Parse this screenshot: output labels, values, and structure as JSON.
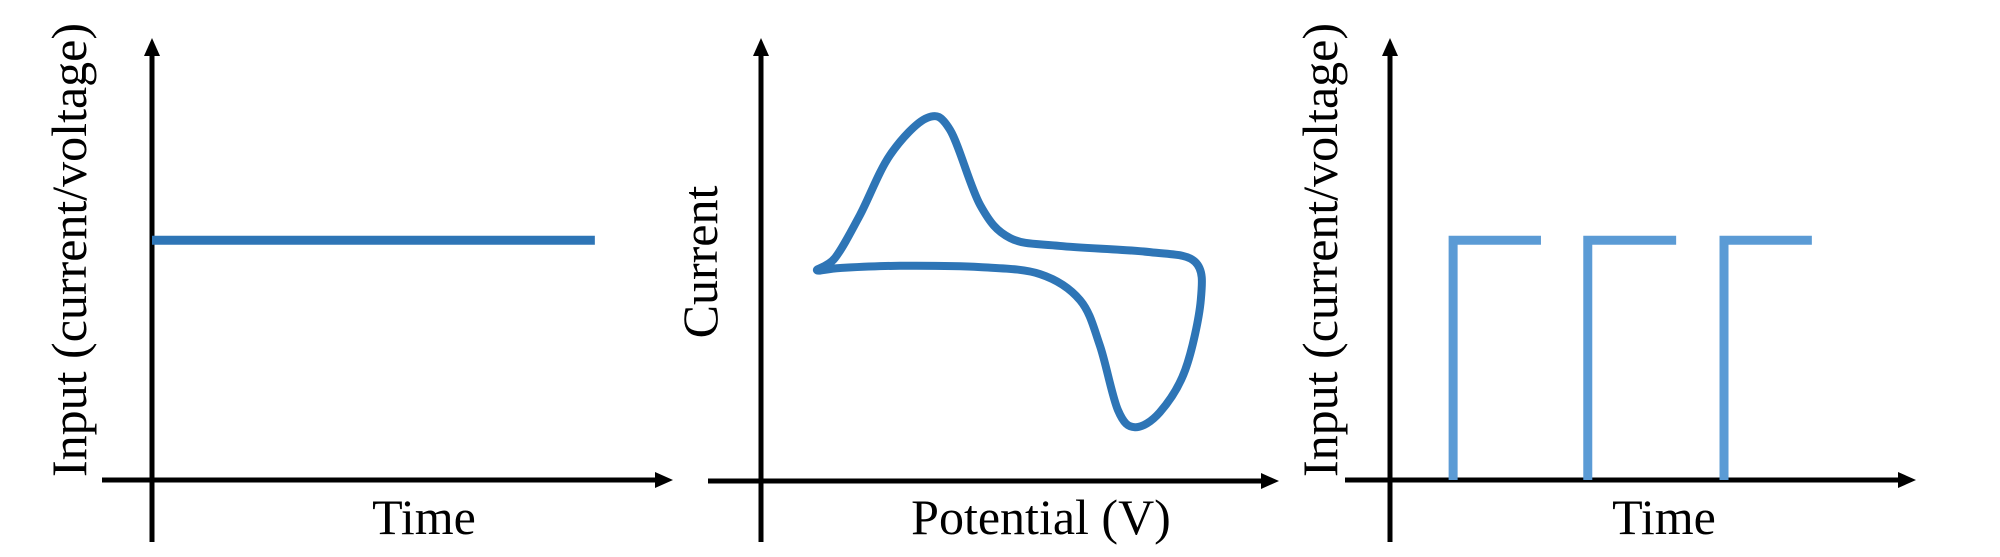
{
  "colors": {
    "axis": "#000000",
    "panel1_line": "#2e75b6",
    "panel2_line": "#2e75b6",
    "panel3_line": "#5b9bd5"
  },
  "chart_data": [
    {
      "type": "line",
      "xlabel": "Time",
      "ylabel": "Input (current/voltage)",
      "xlim": [
        0,
        10
      ],
      "ylim": [
        0,
        10
      ],
      "grid": false,
      "series": [
        {
          "x": [
            0,
            8.5
          ],
          "y": [
            5.45,
            5.45
          ]
        }
      ]
    },
    {
      "type": "line",
      "xlabel": "Potential (V)",
      "ylabel": "Current",
      "xlim": [
        0,
        10
      ],
      "ylim": [
        0,
        10
      ],
      "grid": false,
      "closed": true,
      "series": [
        {
          "x": [
            1.08,
            1.43,
            1.91,
            2.49,
            3.2,
            3.65,
            4.23,
            4.81,
            5.77,
            7.51,
            8.38,
            8.49,
            8.19,
            7.7,
            7.22,
            6.89,
            6.54,
            6.16,
            5.39,
            4.23,
            2.68,
            1.53
          ],
          "y": [
            4.78,
            5.06,
            6.03,
            7.39,
            8.23,
            7.96,
            6.26,
            5.51,
            5.33,
            5.19,
            4.97,
            4.1,
            2.52,
            1.56,
            1.22,
            1.61,
            3.08,
            4.1,
            4.69,
            4.85,
            4.88,
            4.83
          ]
        }
      ]
    },
    {
      "type": "line",
      "xlabel": "Time",
      "ylabel": "Input (current/voltage)",
      "xlim": [
        0,
        10
      ],
      "ylim": [
        0,
        10
      ],
      "grid": false,
      "pulses": [
        {
          "start": 1.2,
          "end": 2.87,
          "level": 5.45
        },
        {
          "start": 3.76,
          "end": 5.44,
          "level": 5.45
        },
        {
          "start": 6.35,
          "end": 8.02,
          "level": 5.45
        }
      ]
    }
  ]
}
